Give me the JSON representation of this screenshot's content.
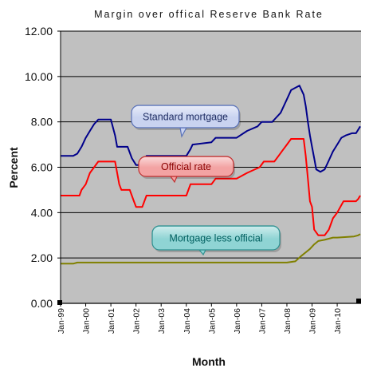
{
  "chart_data": {
    "type": "line",
    "title": "Margin over offical Reserve Bank Rate",
    "xlabel": "Month",
    "ylabel": "Percent",
    "ylim": [
      0,
      12
    ],
    "yticks": [
      "0.00",
      "2.00",
      "4.00",
      "6.00",
      "8.00",
      "10.00",
      "12.00"
    ],
    "xticks": [
      "Jan-99",
      "Jan-00",
      "Jan-01",
      "Jan-02",
      "Jan-03",
      "Jan-04",
      "Jan-05",
      "Jan-06",
      "Jan-07",
      "Jan-08",
      "Jan-09",
      "Jan-10"
    ],
    "x_range": [
      "Jan-99",
      "Dec-10"
    ],
    "grid": "horizontal",
    "legend": "callouts",
    "plot_background": "#c0c0c0",
    "series": [
      {
        "name": "Standard mortgage",
        "color": "#00008b",
        "points": [
          [
            "Jan-99",
            6.5
          ],
          [
            "Jul-99",
            6.5
          ],
          [
            "Sep-99",
            6.6
          ],
          [
            "Nov-99",
            6.9
          ],
          [
            "Jan-00",
            7.3
          ],
          [
            "Mar-00",
            7.6
          ],
          [
            "May-00",
            7.9
          ],
          [
            "Jul-00",
            8.1
          ],
          [
            "Jan-01",
            8.1
          ],
          [
            "Mar-01",
            7.4
          ],
          [
            "Apr-01",
            6.9
          ],
          [
            "Sep-01",
            6.9
          ],
          [
            "Nov-01",
            6.4
          ],
          [
            "Jan-02",
            6.1
          ],
          [
            "Apr-02",
            6.1
          ],
          [
            "Jun-02",
            6.5
          ],
          [
            "Jan-04",
            6.5
          ],
          [
            "Mar-04",
            6.8
          ],
          [
            "Apr-04",
            7.0
          ],
          [
            "Jan-05",
            7.1
          ],
          [
            "Mar-05",
            7.3
          ],
          [
            "Jan-06",
            7.3
          ],
          [
            "Jun-06",
            7.6
          ],
          [
            "Nov-06",
            7.8
          ],
          [
            "Jan-07",
            8.0
          ],
          [
            "Jun-07",
            8.0
          ],
          [
            "Aug-07",
            8.2
          ],
          [
            "Oct-07",
            8.4
          ],
          [
            "Jan-08",
            9.0
          ],
          [
            "Mar-08",
            9.4
          ],
          [
            "May-08",
            9.5
          ],
          [
            "Jul-08",
            9.6
          ],
          [
            "Sep-08",
            9.2
          ],
          [
            "Oct-08",
            8.7
          ],
          [
            "Nov-08",
            8.0
          ],
          [
            "Dec-08",
            7.4
          ],
          [
            "Jan-09",
            6.9
          ],
          [
            "Feb-09",
            6.4
          ],
          [
            "Mar-09",
            5.9
          ],
          [
            "May-09",
            5.8
          ],
          [
            "Jul-09",
            5.9
          ],
          [
            "Sep-09",
            6.3
          ],
          [
            "Nov-09",
            6.7
          ],
          [
            "Jan-10",
            7.0
          ],
          [
            "Mar-10",
            7.3
          ],
          [
            "May-10",
            7.4
          ],
          [
            "Aug-10",
            7.5
          ],
          [
            "Oct-10",
            7.5
          ],
          [
            "Dec-10",
            7.8
          ]
        ]
      },
      {
        "name": "Official rate",
        "color": "#ff0000",
        "points": [
          [
            "Jan-99",
            4.75
          ],
          [
            "Oct-99",
            4.75
          ],
          [
            "Nov-99",
            5.0
          ],
          [
            "Jan-00",
            5.25
          ],
          [
            "Mar-00",
            5.75
          ],
          [
            "May-00",
            6.0
          ],
          [
            "Jul-00",
            6.25
          ],
          [
            "Mar-01",
            6.25
          ],
          [
            "Apr-01",
            5.75
          ],
          [
            "May-01",
            5.25
          ],
          [
            "Jun-01",
            5.0
          ],
          [
            "Oct-01",
            5.0
          ],
          [
            "Nov-01",
            4.75
          ],
          [
            "Dec-01",
            4.5
          ],
          [
            "Jan-02",
            4.25
          ],
          [
            "Apr-02",
            4.25
          ],
          [
            "Jun-02",
            4.75
          ],
          [
            "Jan-04",
            4.75
          ],
          [
            "Feb-04",
            5.0
          ],
          [
            "Mar-04",
            5.25
          ],
          [
            "Jan-05",
            5.25
          ],
          [
            "Mar-05",
            5.5
          ],
          [
            "Jan-06",
            5.5
          ],
          [
            "Jun-06",
            5.75
          ],
          [
            "Dec-06",
            6.0
          ],
          [
            "Feb-07",
            6.25
          ],
          [
            "Jul-07",
            6.25
          ],
          [
            "Sep-07",
            6.5
          ],
          [
            "Nov-07",
            6.75
          ],
          [
            "Jan-08",
            7.0
          ],
          [
            "Mar-08",
            7.25
          ],
          [
            "Sep-08",
            7.25
          ],
          [
            "Oct-08",
            6.5
          ],
          [
            "Nov-08",
            5.5
          ],
          [
            "Dec-08",
            4.5
          ],
          [
            "Jan-09",
            4.25
          ],
          [
            "Feb-09",
            3.25
          ],
          [
            "Apr-09",
            3.0
          ],
          [
            "Jul-09",
            3.0
          ],
          [
            "Sep-09",
            3.25
          ],
          [
            "Nov-09",
            3.75
          ],
          [
            "Jan-10",
            4.0
          ],
          [
            "Apr-10",
            4.5
          ],
          [
            "Oct-10",
            4.5
          ],
          [
            "Nov-10",
            4.6
          ],
          [
            "Dec-10",
            4.75
          ]
        ]
      },
      {
        "name": "Mortgage less official",
        "color": "#808000",
        "points": [
          [
            "Jan-99",
            1.75
          ],
          [
            "Jul-99",
            1.75
          ],
          [
            "Sep-99",
            1.8
          ],
          [
            "Jan-08",
            1.8
          ],
          [
            "May-08",
            1.85
          ],
          [
            "Aug-08",
            2.1
          ],
          [
            "Oct-08",
            2.25
          ],
          [
            "Dec-08",
            2.4
          ],
          [
            "Feb-09",
            2.6
          ],
          [
            "Apr-09",
            2.75
          ],
          [
            "Jul-09",
            2.8
          ],
          [
            "Nov-09",
            2.9
          ],
          [
            "Jan-10",
            2.9
          ],
          [
            "Sep-10",
            2.95
          ],
          [
            "Nov-10",
            3.0
          ],
          [
            "Dec-10",
            3.05
          ]
        ]
      }
    ],
    "callouts": [
      {
        "text": "Standard mortgage",
        "series": "Standard mortgage",
        "fill": "#c9d3f0",
        "stroke": "#5a72b8",
        "text_color": "#1f2d63"
      },
      {
        "text": "Official rate",
        "series": "Official rate",
        "fill": "#f3a3a3",
        "stroke": "#c03030",
        "text_color": "#8b0000"
      },
      {
        "text": "Mortgage less official",
        "series": "Mortgage less official",
        "fill": "#8fd4d4",
        "stroke": "#2e8f8f",
        "text_color": "#005f5f"
      }
    ]
  }
}
